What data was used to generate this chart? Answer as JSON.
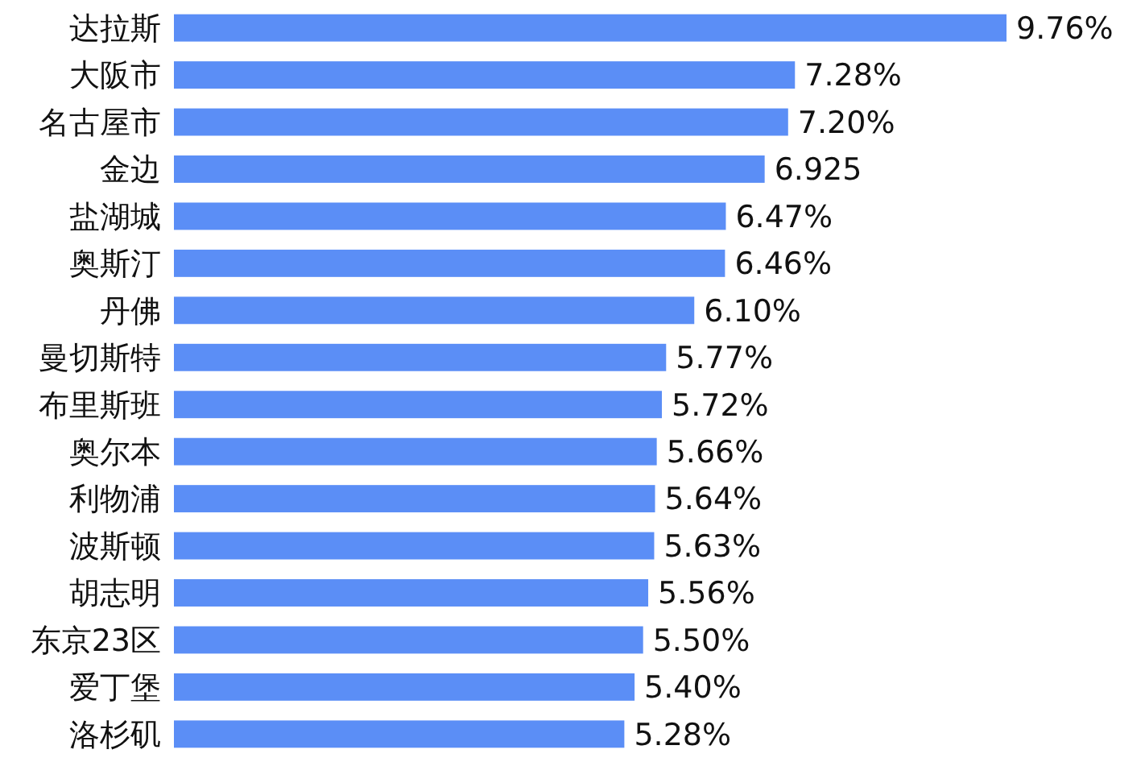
{
  "chart_data": {
    "type": "bar",
    "orientation": "horizontal",
    "categories": [
      "达拉斯",
      "大阪市",
      "名古屋市",
      "金边",
      "盐湖城",
      "奥斯汀",
      "丹佛",
      "曼切斯特",
      "布里斯班",
      "奥尔本",
      "利物浦",
      "波斯顿",
      "胡志明",
      "东京23区",
      "爱丁堡",
      "洛杉矶"
    ],
    "values": [
      9.76,
      7.28,
      7.2,
      6.925,
      6.47,
      6.46,
      6.1,
      5.77,
      5.72,
      5.66,
      5.64,
      5.63,
      5.56,
      5.5,
      5.4,
      5.28
    ],
    "value_labels": [
      "9.76%",
      "7.28%",
      "7.20%",
      "6.925",
      "6.47%",
      "6.46%",
      "6.10%",
      "5.77%",
      "5.72%",
      "5.66%",
      "5.64%",
      "5.63%",
      "5.56%",
      "5.50%",
      "5.40%",
      "5.28%"
    ],
    "color": "#5b8ef6"
  }
}
